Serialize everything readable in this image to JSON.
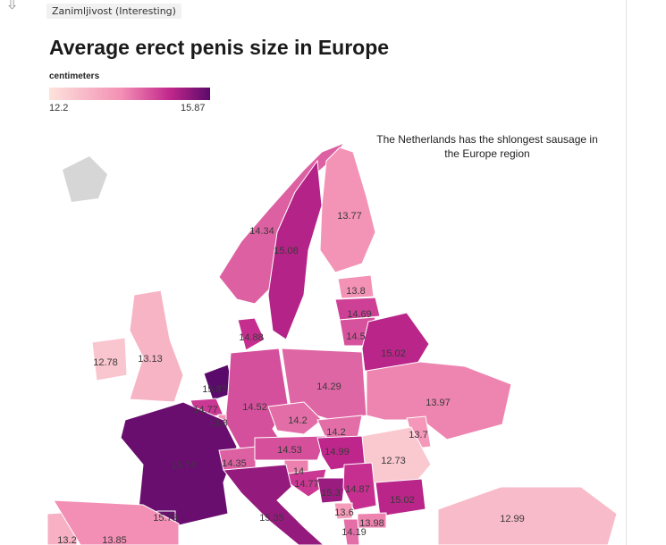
{
  "tag": "Zanimljivost (Interesting)",
  "chart_data": {
    "type": "choropleth",
    "title": "Average erect penis size in Europe",
    "legend_unit": "centimeters",
    "legend_min": "12.2",
    "legend_max": "15.87",
    "range": [
      12.2,
      15.87
    ],
    "annotation": "The Netherlands has the shlongest sausage in the Europe region",
    "regions": [
      {
        "name": "Norway",
        "value": "14.34"
      },
      {
        "name": "Sweden",
        "value": "15.08"
      },
      {
        "name": "Finland",
        "value": "13.77"
      },
      {
        "name": "Estonia",
        "value": "13.8"
      },
      {
        "name": "Latvia",
        "value": "14.69"
      },
      {
        "name": "Lithuania",
        "value": "14.5"
      },
      {
        "name": "Belarus",
        "value": "15.02"
      },
      {
        "name": "Denmark",
        "value": "14.88"
      },
      {
        "name": "Ireland",
        "value": "12.78"
      },
      {
        "name": "United Kingdom",
        "value": "13.13"
      },
      {
        "name": "Netherlands",
        "value": "15.87"
      },
      {
        "name": "Germany",
        "value": "14.52"
      },
      {
        "name": "Poland",
        "value": "14.29"
      },
      {
        "name": "Ukraine",
        "value": "13.97"
      },
      {
        "name": "Belgium",
        "value": "14.77"
      },
      {
        "name": "Luxembourg",
        "value": "13.8"
      },
      {
        "name": "Czechia",
        "value": "14.2"
      },
      {
        "name": "Slovakia",
        "value": "14.2"
      },
      {
        "name": "Moldova",
        "value": "13.7"
      },
      {
        "name": "France",
        "value": "15.74"
      },
      {
        "name": "Switzerland",
        "value": "14.35"
      },
      {
        "name": "Austria",
        "value": "14.53"
      },
      {
        "name": "Hungary",
        "value": "14.99"
      },
      {
        "name": "Romania",
        "value": "12.73"
      },
      {
        "name": "Slovenia",
        "value": "14"
      },
      {
        "name": "Croatia",
        "value": "14.77"
      },
      {
        "name": "Bosnia",
        "value": "15.3"
      },
      {
        "name": "Serbia",
        "value": "14.87"
      },
      {
        "name": "Bulgaria",
        "value": "15.02"
      },
      {
        "name": "Montenegro",
        "value": "13.6"
      },
      {
        "name": "North Macedonia",
        "value": "13.98"
      },
      {
        "name": "Albania",
        "value": "14.19"
      },
      {
        "name": "Italy",
        "value": "15.35"
      },
      {
        "name": "Andorra",
        "value": "15.73"
      },
      {
        "name": "Portugal",
        "value": "13.2"
      },
      {
        "name": "Spain",
        "value": "13.85"
      },
      {
        "name": "Turkey",
        "value": "12.99"
      }
    ]
  }
}
